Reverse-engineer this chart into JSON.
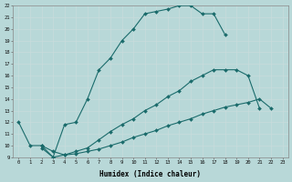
{
  "xlabel": "Humidex (Indice chaleur)",
  "bg_color": "#b8d8d8",
  "grid_color": "#c8dcdc",
  "line_color": "#1a6b6b",
  "xlim_min": -0.5,
  "xlim_max": 23.5,
  "ylim_min": 9,
  "ylim_max": 22,
  "xticks": [
    0,
    1,
    2,
    3,
    4,
    5,
    6,
    7,
    8,
    9,
    10,
    11,
    12,
    13,
    14,
    15,
    16,
    17,
    18,
    19,
    20,
    21,
    22,
    23
  ],
  "yticks": [
    9,
    10,
    11,
    12,
    13,
    14,
    15,
    16,
    17,
    18,
    19,
    20,
    21,
    22
  ],
  "line1_x": [
    0,
    1,
    2,
    3,
    4,
    5,
    6,
    7,
    8,
    9,
    10,
    11,
    12,
    13,
    14,
    15,
    16,
    17,
    18
  ],
  "line1_y": [
    12,
    10,
    10,
    9,
    11.8,
    12.0,
    14.0,
    16.5,
    17.5,
    19.0,
    20.0,
    21.3,
    21.5,
    21.7,
    22,
    22,
    21.3,
    21.3,
    19.5
  ],
  "line2_x": [
    2,
    3,
    4,
    5,
    6,
    7,
    8,
    9,
    10,
    11,
    12,
    13,
    14,
    15,
    16,
    17,
    18,
    19,
    20,
    21
  ],
  "line2_y": [
    10,
    9.5,
    9.2,
    9.5,
    9.8,
    10.5,
    11.2,
    11.8,
    12.3,
    13.0,
    13.5,
    14.2,
    14.7,
    15.5,
    16.0,
    16.5,
    16.5,
    16.5,
    16.0,
    13.2
  ],
  "line3_x": [
    2,
    3,
    4,
    5,
    6,
    7,
    8,
    9,
    10,
    11,
    12,
    13,
    14,
    15,
    16,
    17,
    18,
    19,
    20,
    21,
    22
  ],
  "line3_y": [
    9.8,
    9.0,
    9.2,
    9.3,
    9.5,
    9.7,
    10.0,
    10.3,
    10.7,
    11.0,
    11.3,
    11.7,
    12.0,
    12.3,
    12.7,
    13.0,
    13.3,
    13.5,
    13.7,
    14.0,
    13.2
  ]
}
